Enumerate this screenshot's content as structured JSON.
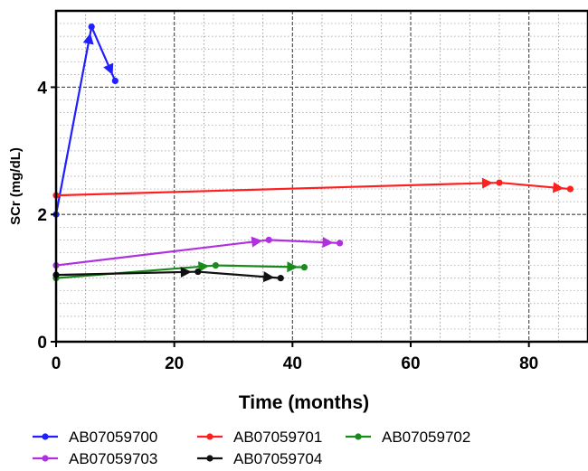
{
  "chart_data": {
    "type": "line",
    "xlabel": "Time (months)",
    "ylabel": "SCr (mg/dL)",
    "xlim": [
      0,
      90
    ],
    "ylim": [
      0,
      5.2
    ],
    "x_ticks": [
      0,
      20,
      40,
      60,
      80
    ],
    "x_tick_labels": [
      "0",
      "20",
      "40",
      "60",
      "80"
    ],
    "y_ticks": [
      0,
      2,
      4
    ],
    "y_tick_labels": [
      "0",
      "2",
      "4"
    ],
    "grid": "major and minor, dashed",
    "legend_position": "bottom",
    "series": [
      {
        "name": "AB07059700",
        "color": "#1f1fff",
        "x": [
          0,
          6,
          10
        ],
        "y": [
          2.0,
          4.95,
          4.1
        ]
      },
      {
        "name": "AB07059701",
        "color": "#ff1f1f",
        "x": [
          0,
          75,
          87
        ],
        "y": [
          2.3,
          2.5,
          2.4
        ]
      },
      {
        "name": "AB07059702",
        "color": "#1a8a1a",
        "x": [
          0,
          27,
          42
        ],
        "y": [
          1.0,
          1.2,
          1.17
        ]
      },
      {
        "name": "AB07059703",
        "color": "#b030e0",
        "x": [
          0,
          36,
          48
        ],
        "y": [
          1.2,
          1.6,
          1.55
        ]
      },
      {
        "name": "AB07059704",
        "color": "#111111",
        "x": [
          0,
          24,
          38
        ],
        "y": [
          1.05,
          1.1,
          1.0
        ]
      }
    ]
  }
}
